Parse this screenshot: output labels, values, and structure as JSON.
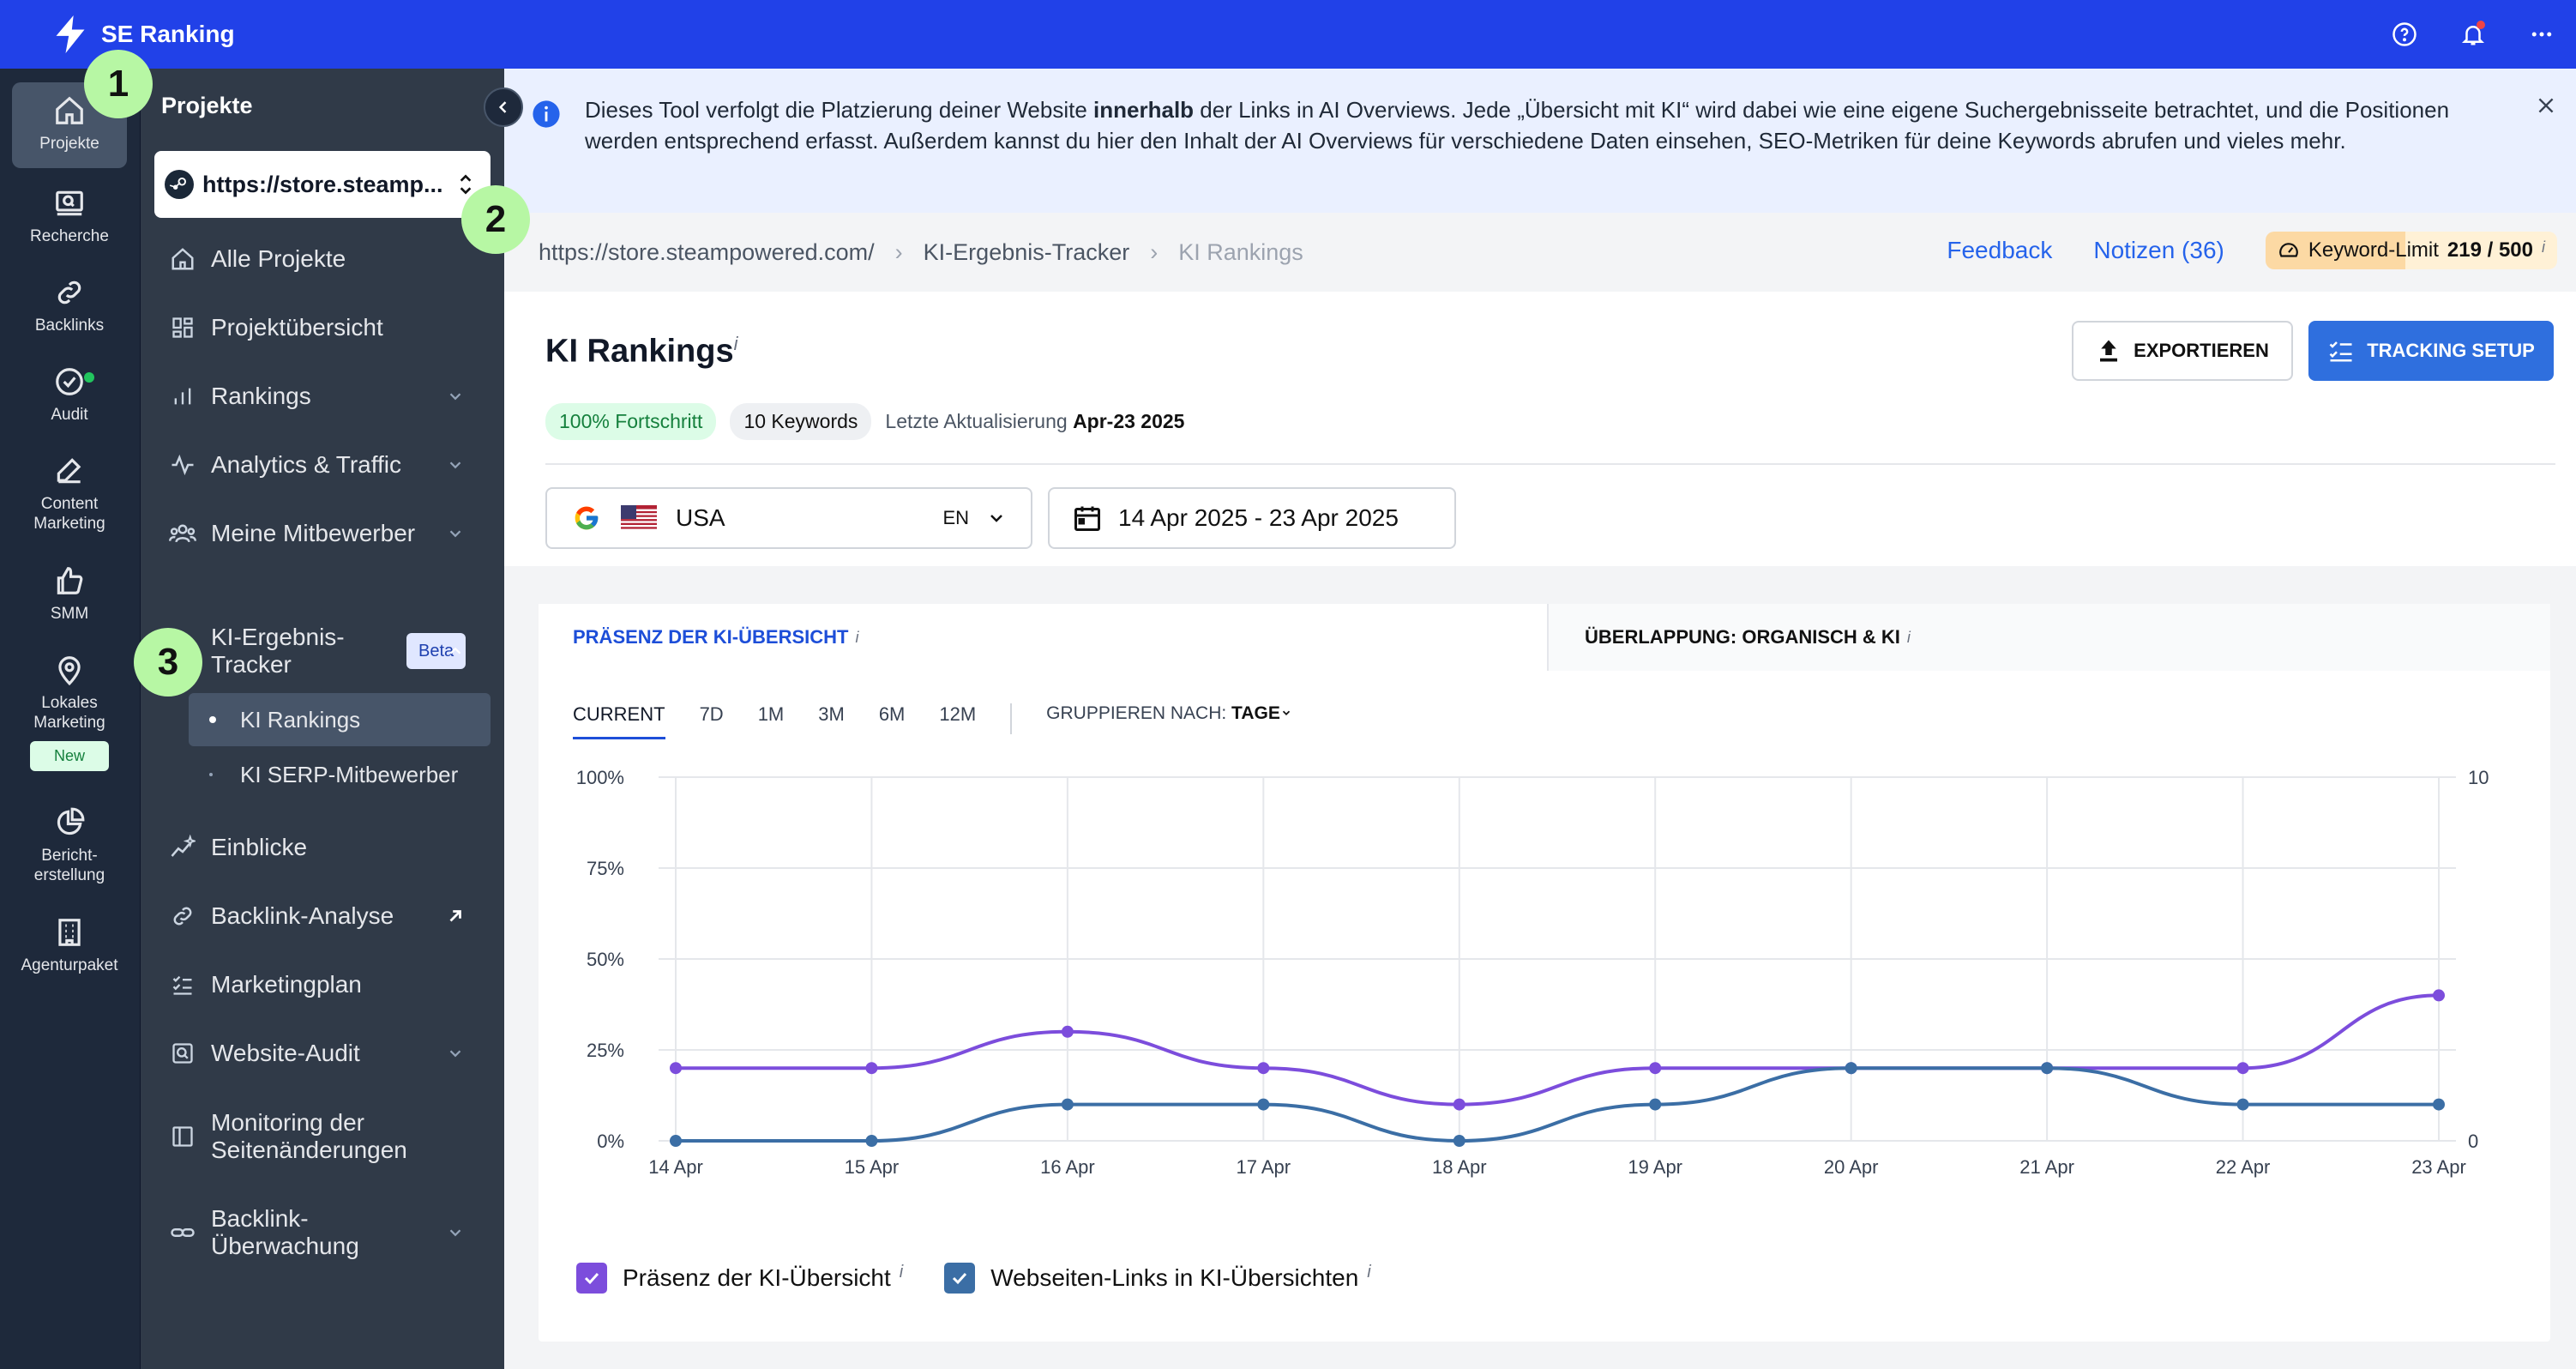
{
  "app": {
    "name": "SE Ranking"
  },
  "colors": {
    "brand": "#2141e8",
    "series1": "#7c4ddc",
    "series2": "#3b6ea5",
    "accent": "#2f6fde"
  },
  "rail": {
    "items": [
      {
        "label": "Projekte"
      },
      {
        "label": "Recherche"
      },
      {
        "label": "Backlinks"
      },
      {
        "label": "Audit"
      },
      {
        "label": "Content\nMarketing"
      },
      {
        "label": "SMM"
      },
      {
        "label": "Lokales\nMarketing"
      },
      {
        "label": "Bericht-\nerstellung"
      },
      {
        "label": "Agenturpaket"
      }
    ],
    "new_badge": "New"
  },
  "sidebar": {
    "title": "Projekte",
    "project": "https://store.steamp...",
    "items": [
      {
        "label": "Alle Projekte"
      },
      {
        "label": "Projektübersicht"
      },
      {
        "label": "Rankings"
      },
      {
        "label": "Analytics & Traffic"
      },
      {
        "label": "Meine Mitbewerber"
      },
      {
        "label": "KI-Ergebnis-\nTracker"
      },
      {
        "label": "Einblicke"
      },
      {
        "label": "Backlink-Analyse"
      },
      {
        "label": "Marketingplan"
      },
      {
        "label": "Website-Audit"
      },
      {
        "label": "Monitoring der\nSeitenänderungen"
      },
      {
        "label": "Backlink-\nÜberwachung"
      }
    ],
    "beta": "Beta",
    "sub_items": [
      {
        "label": "KI Rankings"
      },
      {
        "label": "KI SERP-Mitbewerber"
      }
    ]
  },
  "steps": [
    "1",
    "2",
    "3"
  ],
  "banner": {
    "text_before": "Dieses Tool verfolgt die Platzierung deiner Website ",
    "text_bold": "innerhalb",
    "text_after": " der Links in AI Overviews. Jede „Übersicht mit KI“ wird dabei wie eine eigene Suchergebnisseite betrachtet, und die Positionen werden entsprechend erfasst. Außerdem kannst du hier den Inhalt der AI Overviews für verschiedene Daten einsehen, SEO-Metriken für deine Keywords abrufen und vieles mehr."
  },
  "breadcrumb": {
    "items": [
      "https://store.steampowered.com/",
      "KI-Ergebnis-Tracker",
      "KI Rankings"
    ],
    "sep": "›",
    "feedback": "Feedback",
    "notes": "Notizen (36)",
    "kw_limit_label": "Keyword-Limit",
    "kw_limit_value": "219 / 500",
    "info": "i"
  },
  "page": {
    "title": "KI Rankings",
    "title_info": "i",
    "export": "EXPORTIEREN",
    "tracking": "TRACKING SETUP",
    "progress": "100% Fortschritt",
    "keywords": "10 Keywords",
    "last_update_label": "Letzte Aktualisierung",
    "last_update_value": "Apr-23 2025"
  },
  "filters": {
    "country": "USA",
    "lang": "EN",
    "date_range": "14 Apr 2025 - 23 Apr 2025"
  },
  "tabs": [
    {
      "label": "PRÄSENZ DER KI-ÜBERSICHT",
      "info": "i"
    },
    {
      "label": "ÜBERLAPPUNG: ORGANISCH & KI",
      "info": "i"
    }
  ],
  "periods": [
    "CURRENT",
    "7D",
    "1M",
    "3M",
    "6M",
    "12M"
  ],
  "group_by": {
    "label": "GRUPPIEREN NACH:",
    "value": "TAGE"
  },
  "legend": [
    {
      "label": "Präsenz der KI-Übersicht",
      "info": "i"
    },
    {
      "label": "Webseiten-Links in KI-Übersichten",
      "info": "i"
    }
  ],
  "chart_data": {
    "type": "line",
    "title": "",
    "x": [
      "14 Apr",
      "15 Apr",
      "16 Apr",
      "17 Apr",
      "18 Apr",
      "19 Apr",
      "20 Apr",
      "21 Apr",
      "22 Apr",
      "23 Apr"
    ],
    "y_left_ticks": [
      "100%",
      "75%",
      "50%",
      "25%",
      "0%"
    ],
    "y_right_ticks": [
      "10",
      "0"
    ],
    "ylim_left": [
      0,
      100
    ],
    "ylim_right": [
      0,
      10
    ],
    "series": [
      {
        "name": "Präsenz der KI-Übersicht",
        "axis": "left",
        "values": [
          20,
          20,
          30,
          20,
          10,
          20,
          20,
          20,
          20,
          40
        ]
      },
      {
        "name": "Webseiten-Links in KI-Übersichten",
        "axis": "right",
        "values": [
          0,
          0,
          1,
          1,
          0,
          1,
          2,
          2,
          1,
          1
        ]
      }
    ],
    "grid": true
  }
}
